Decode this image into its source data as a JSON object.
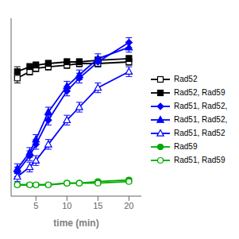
{
  "chart_data": {
    "type": "line",
    "xlabel": "time (min)",
    "x": [
      2,
      4,
      5,
      7,
      10,
      12,
      15,
      20
    ],
    "xlim": [
      1,
      22
    ],
    "xticks": [
      5,
      10,
      15,
      20
    ],
    "ylim": [
      -0.05,
      1.05
    ],
    "tick_labels": "x",
    "series": [
      {
        "name": "Rad52",
        "color": "#000000",
        "marker": "square_open",
        "values": [
          0.68,
          0.72,
          0.74,
          0.75,
          0.76,
          0.77,
          0.77,
          0.78
        ],
        "errors": [
          0.03,
          0.02,
          0.02,
          0.02,
          0.02,
          0.02,
          0.02,
          0.02
        ]
      },
      {
        "name": "Rad52, Rad59",
        "color": "#000000",
        "marker": "square",
        "values": [
          0.72,
          0.75,
          0.76,
          0.77,
          0.78,
          0.78,
          0.79,
          0.8
        ],
        "errors": [
          0.03,
          0.02,
          0.02,
          0.02,
          0.02,
          0.02,
          0.02,
          0.02
        ]
      },
      {
        "name": "Rad51, Rad52,",
        "color": "#0000FF",
        "marker": "diamond",
        "values": [
          0.1,
          0.2,
          0.27,
          0.42,
          0.6,
          0.68,
          0.78,
          0.9
        ],
        "errors": [
          0.03,
          0.03,
          0.03,
          0.03,
          0.03,
          0.03,
          0.03,
          0.03
        ]
      },
      {
        "name": "Rad51, Rad52,",
        "color": "#0000FF",
        "marker": "triangle",
        "values": [
          0.12,
          0.22,
          0.3,
          0.47,
          0.63,
          0.7,
          0.8,
          0.87
        ],
        "errors": [
          0.03,
          0.03,
          0.03,
          0.03,
          0.03,
          0.03,
          0.03,
          0.03
        ]
      },
      {
        "name": "Rad51, Rad52",
        "color": "#0000FF",
        "marker": "triangle_open",
        "values": [
          0.07,
          0.13,
          0.17,
          0.27,
          0.42,
          0.5,
          0.62,
          0.72
        ],
        "errors": [
          0.03,
          0.03,
          0.03,
          0.03,
          0.03,
          0.03,
          0.03,
          0.03
        ]
      },
      {
        "name": "Rad59",
        "color": "#00AA00",
        "marker": "circle",
        "values": [
          0.02,
          0.02,
          0.02,
          0.02,
          0.03,
          0.03,
          0.04,
          0.05
        ],
        "errors": [
          0.01,
          0.01,
          0.01,
          0.01,
          0.01,
          0.01,
          0.01,
          0.01
        ]
      },
      {
        "name": "Rad51, Rad59",
        "color": "#00AA00",
        "marker": "circle_open",
        "values": [
          0.02,
          0.02,
          0.02,
          0.02,
          0.03,
          0.03,
          0.03,
          0.04
        ],
        "errors": [
          0.01,
          0.01,
          0.01,
          0.01,
          0.01,
          0.01,
          0.01,
          0.01
        ]
      }
    ]
  }
}
